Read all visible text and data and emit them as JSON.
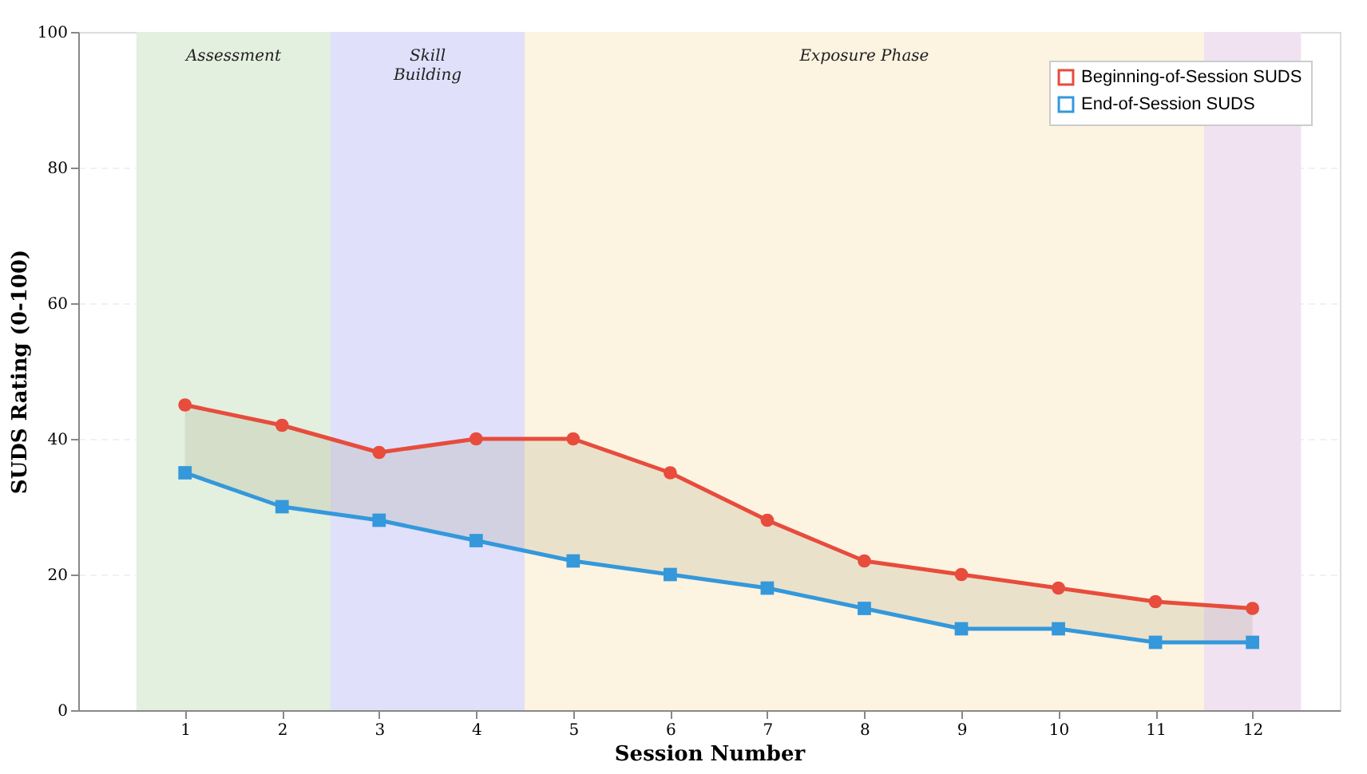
{
  "chart_data": {
    "type": "line",
    "xlabel": "Session Number",
    "ylabel": "SUDS Rating (0-100)",
    "x": [
      1,
      2,
      3,
      4,
      5,
      6,
      7,
      8,
      9,
      10,
      11,
      12
    ],
    "series": [
      {
        "name": "Beginning-of-Session SUDS",
        "color": "#e74c3c",
        "marker": "circle",
        "values": [
          45,
          42,
          38,
          40,
          40,
          35,
          28,
          22,
          20,
          18,
          16,
          15
        ],
        "lower": [
          35,
          30,
          28,
          25,
          22,
          20,
          18,
          15,
          12,
          12,
          10,
          10
        ],
        "upper": [
          45,
          42,
          38,
          40,
          40,
          35,
          28,
          22,
          20,
          18,
          16,
          15
        ]
      },
      {
        "name": "End-of-Session SUDS",
        "color": "#3498db",
        "marker": "square",
        "values": [
          35,
          30,
          28,
          25,
          22,
          20,
          18,
          15,
          12,
          12,
          10,
          10
        ]
      }
    ],
    "bands": [
      {
        "axis": "x",
        "from": 0.5,
        "to": 2.5,
        "label": "Assessment",
        "color": "#e3efdf"
      },
      {
        "axis": "x",
        "from": 2.5,
        "to": 4.5,
        "label": "Skill\nBuilding",
        "color": "#e0e0fb"
      },
      {
        "axis": "x",
        "from": 4.5,
        "to": 11.5,
        "label": "Exposure Phase",
        "color": "#fdf3e1"
      },
      {
        "axis": "x",
        "from": 11.5,
        "to": 12.5,
        "label": null,
        "color": "#f0e2f1"
      }
    ],
    "xlim": [
      -0.1,
      12.9
    ],
    "xticks": [
      1,
      2,
      3,
      4,
      5,
      6,
      7,
      8,
      9,
      10,
      11,
      12
    ],
    "ylim": [
      0,
      100
    ],
    "yticks": [
      0,
      20,
      40,
      60,
      80,
      100
    ],
    "grid": true,
    "line_style": "solid",
    "legend": "top right"
  }
}
